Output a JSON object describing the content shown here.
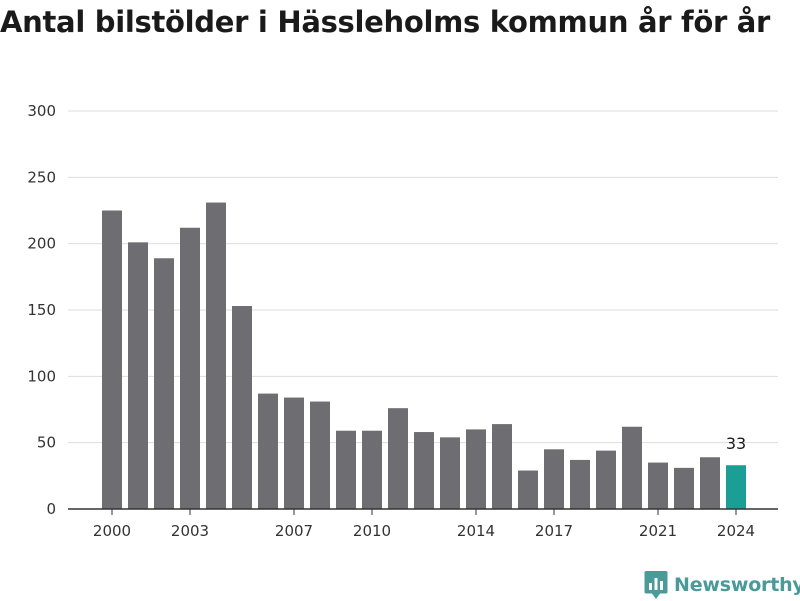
{
  "colors": {
    "bar": "#6e6d72",
    "highlight": "#1a9e96",
    "grid": "#dddddd",
    "axis": "#333333",
    "brand": "#4a9a9a"
  },
  "brand": {
    "name": "Newsworthy",
    "icon": "newsworthy-logo-icon"
  },
  "chart_data": {
    "type": "bar",
    "title": "Antal bilstölder i Hässleholms kommun år för år",
    "xlabel": "",
    "ylabel": "",
    "ylim": [
      0,
      300
    ],
    "y_ticks": [
      0,
      50,
      100,
      150,
      200,
      250,
      300
    ],
    "x_tick_labels": [
      "2000",
      "2003",
      "2007",
      "2010",
      "2014",
      "2017",
      "2021",
      "2024"
    ],
    "grid": true,
    "categories": [
      "2000",
      "2001",
      "2002",
      "2003",
      "2004",
      "2005",
      "2006",
      "2007",
      "2008",
      "2009",
      "2010",
      "2011",
      "2012",
      "2013",
      "2014",
      "2015",
      "2016",
      "2017",
      "2018",
      "2019",
      "2020",
      "2021",
      "2022",
      "2023",
      "2024"
    ],
    "values": [
      225,
      201,
      189,
      212,
      231,
      153,
      87,
      84,
      81,
      59,
      59,
      76,
      58,
      54,
      60,
      64,
      29,
      45,
      37,
      44,
      62,
      35,
      31,
      39,
      33
    ],
    "highlight": {
      "category": "2024",
      "label": "33"
    }
  }
}
